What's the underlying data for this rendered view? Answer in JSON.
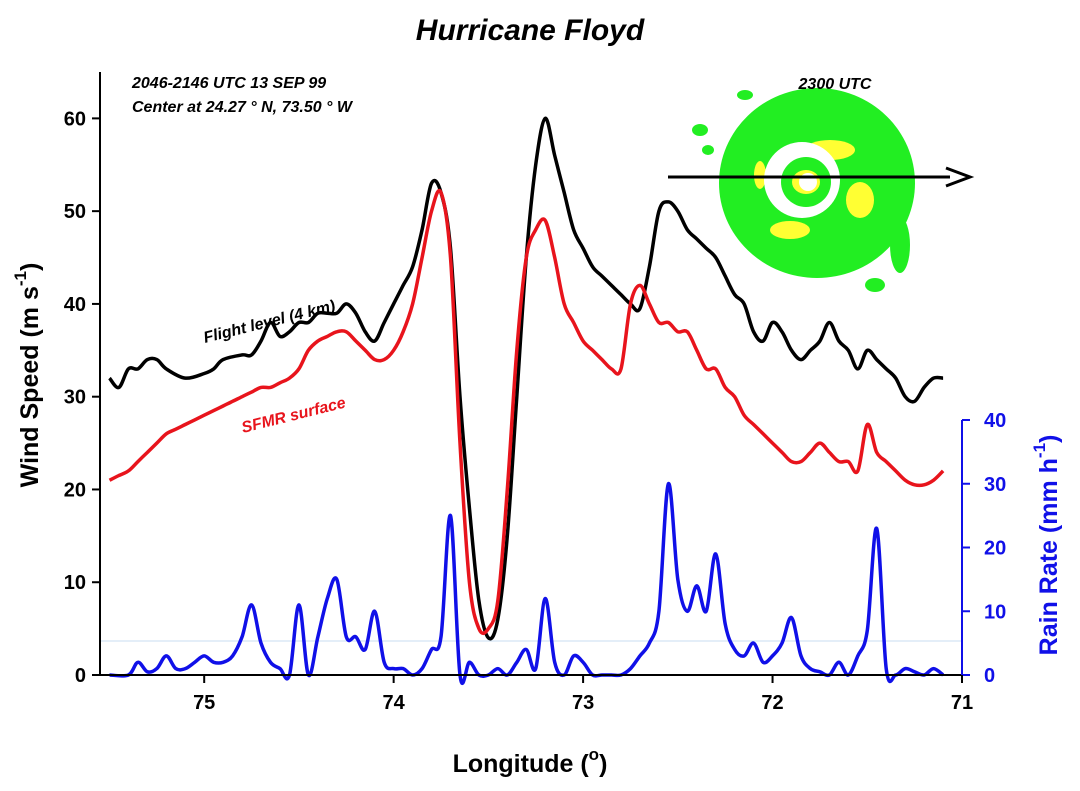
{
  "chart_data": {
    "type": "line",
    "title": "Hurricane Floyd",
    "xlabel": {
      "text": "Longitude (",
      "sup": "o",
      "tail": ")"
    },
    "ylabel_left": {
      "text": "Wind Speed (m s",
      "sup": "-1",
      "tail": ")"
    },
    "ylabel_right": {
      "text": "Rain Rate (mm h",
      "sup": "-1",
      "tail": ")"
    },
    "xlim": [
      75.55,
      71.0
    ],
    "xticks": [
      75,
      74,
      73,
      72,
      71
    ],
    "ylim_left": [
      0,
      65
    ],
    "yticks_left": [
      0,
      10,
      20,
      30,
      40,
      50,
      60
    ],
    "ylim_right": [
      0,
      40
    ],
    "yticks_right": [
      0,
      10,
      20,
      30,
      40
    ],
    "annotations": {
      "time_range": "2046-2146 UTC 13 SEP 99",
      "center": "Center at 24.27 ° N, 73.50 ° W",
      "inset_time": "2300 UTC"
    },
    "series": [
      {
        "name": "Flight level (4 km)",
        "color": "#000000",
        "axis": "left",
        "x": [
          75.5,
          75.45,
          75.4,
          75.35,
          75.3,
          75.25,
          75.2,
          75.1,
          75.0,
          74.95,
          74.9,
          74.8,
          74.75,
          74.7,
          74.65,
          74.6,
          74.55,
          74.5,
          74.45,
          74.4,
          74.35,
          74.3,
          74.25,
          74.2,
          74.15,
          74.1,
          74.05,
          74.0,
          73.95,
          73.9,
          73.85,
          73.8,
          73.75,
          73.7,
          73.65,
          73.6,
          73.55,
          73.5,
          73.45,
          73.4,
          73.35,
          73.3,
          73.25,
          73.2,
          73.15,
          73.1,
          73.05,
          73.0,
          72.95,
          72.9,
          72.85,
          72.8,
          72.75,
          72.7,
          72.65,
          72.6,
          72.55,
          72.5,
          72.45,
          72.4,
          72.35,
          72.3,
          72.25,
          72.2,
          72.15,
          72.1,
          72.05,
          72.0,
          71.95,
          71.9,
          71.85,
          71.8,
          71.75,
          71.7,
          71.65,
          71.6,
          71.55,
          71.5,
          71.45,
          71.4,
          71.35,
          71.3,
          71.25,
          71.2,
          71.15,
          71.1
        ],
        "y": [
          32,
          31,
          33,
          33,
          34,
          34,
          33,
          32,
          32.5,
          33,
          34,
          34.5,
          34.5,
          36,
          38,
          36.5,
          37,
          38,
          38,
          39,
          39,
          39,
          40,
          39,
          37,
          36,
          38,
          40,
          42,
          44,
          48,
          53,
          52,
          46,
          30,
          18,
          8,
          4,
          6,
          15,
          30,
          45,
          55,
          60,
          56,
          52,
          48,
          46,
          44,
          43,
          42,
          41,
          40,
          39.5,
          44,
          50,
          51,
          50,
          48,
          47,
          46,
          45,
          43,
          41,
          40,
          37,
          36,
          38,
          37,
          35,
          34,
          35,
          36,
          38,
          36,
          35,
          33,
          35,
          34,
          33,
          32,
          30,
          29.5,
          31,
          32,
          32
        ]
      },
      {
        "name": "SFMR surface",
        "color": "#e8141c",
        "axis": "left",
        "x": [
          75.5,
          75.45,
          75.4,
          75.35,
          75.3,
          75.25,
          75.2,
          75.15,
          75.1,
          75.05,
          75.0,
          74.95,
          74.9,
          74.85,
          74.8,
          74.75,
          74.7,
          74.65,
          74.6,
          74.55,
          74.5,
          74.45,
          74.4,
          74.35,
          74.3,
          74.25,
          74.2,
          74.15,
          74.1,
          74.05,
          74.0,
          73.95,
          73.9,
          73.85,
          73.8,
          73.75,
          73.7,
          73.65,
          73.6,
          73.55,
          73.5,
          73.45,
          73.4,
          73.35,
          73.3,
          73.25,
          73.2,
          73.15,
          73.1,
          73.05,
          73.0,
          72.95,
          72.9,
          72.85,
          72.8,
          72.75,
          72.7,
          72.65,
          72.6,
          72.55,
          72.5,
          72.45,
          72.4,
          72.35,
          72.3,
          72.25,
          72.2,
          72.15,
          72.1,
          72.05,
          72.0,
          71.95,
          71.9,
          71.85,
          71.8,
          71.75,
          71.7,
          71.65,
          71.6,
          71.55,
          71.5,
          71.45,
          71.4,
          71.35,
          71.3,
          71.25,
          71.2,
          71.15,
          71.1
        ],
        "y": [
          21,
          21.5,
          22,
          23,
          24,
          25,
          26,
          26.5,
          27,
          27.5,
          28,
          28.5,
          29,
          29.5,
          30,
          30.5,
          31,
          31,
          31.5,
          32,
          33,
          35,
          36,
          36.5,
          37,
          37,
          36,
          35,
          34,
          34,
          35,
          37,
          40,
          45,
          50,
          52,
          45,
          25,
          10,
          5,
          5,
          8,
          20,
          35,
          45,
          48,
          49,
          45,
          40,
          38,
          36,
          35,
          34,
          33,
          33,
          40,
          42,
          40,
          38,
          38,
          37,
          37,
          35,
          33,
          33,
          31,
          30,
          28,
          27,
          26,
          25,
          24,
          23,
          23,
          24,
          25,
          24,
          23,
          23,
          22,
          27,
          24,
          23,
          22,
          21,
          20.5,
          20.5,
          21,
          22
        ]
      },
      {
        "name": "Rain Rate",
        "color": "#1010e8",
        "axis": "right",
        "x": [
          75.5,
          75.4,
          75.35,
          75.3,
          75.25,
          75.2,
          75.15,
          75.1,
          75.05,
          75.0,
          74.95,
          74.9,
          74.85,
          74.8,
          74.75,
          74.7,
          74.65,
          74.6,
          74.55,
          74.5,
          74.45,
          74.4,
          74.35,
          74.3,
          74.25,
          74.2,
          74.15,
          74.1,
          74.05,
          74.0,
          73.95,
          73.9,
          73.85,
          73.8,
          73.75,
          73.7,
          73.65,
          73.6,
          73.55,
          73.5,
          73.45,
          73.4,
          73.35,
          73.3,
          73.25,
          73.2,
          73.15,
          73.1,
          73.05,
          73.0,
          72.95,
          72.9,
          72.85,
          72.8,
          72.75,
          72.7,
          72.65,
          72.6,
          72.55,
          72.5,
          72.45,
          72.4,
          72.35,
          72.3,
          72.25,
          72.2,
          72.15,
          72.1,
          72.05,
          72.0,
          71.95,
          71.9,
          71.85,
          71.8,
          71.75,
          71.7,
          71.65,
          71.6,
          71.55,
          71.5,
          71.45,
          71.4,
          71.35,
          71.3,
          71.25,
          71.2,
          71.15,
          71.1
        ],
        "y": [
          0,
          0,
          2,
          0.5,
          1,
          3,
          1,
          1,
          2,
          3,
          2,
          2,
          3,
          6,
          11,
          5,
          2,
          1,
          0,
          11,
          0,
          6,
          12,
          15,
          6,
          6,
          4,
          10,
          2,
          1,
          1,
          0,
          1,
          4,
          6,
          25,
          0,
          2,
          0,
          0,
          1,
          0,
          2,
          4,
          1,
          12,
          2,
          0,
          3,
          2,
          0,
          0,
          0,
          0,
          1,
          3,
          5,
          10,
          30,
          15,
          10,
          14,
          10,
          19,
          8,
          4,
          3,
          5,
          2,
          3,
          5,
          9,
          3,
          1,
          0.5,
          0,
          2,
          0,
          3,
          7,
          23,
          1,
          0,
          1,
          0.5,
          0,
          1,
          0
        ]
      }
    ]
  }
}
